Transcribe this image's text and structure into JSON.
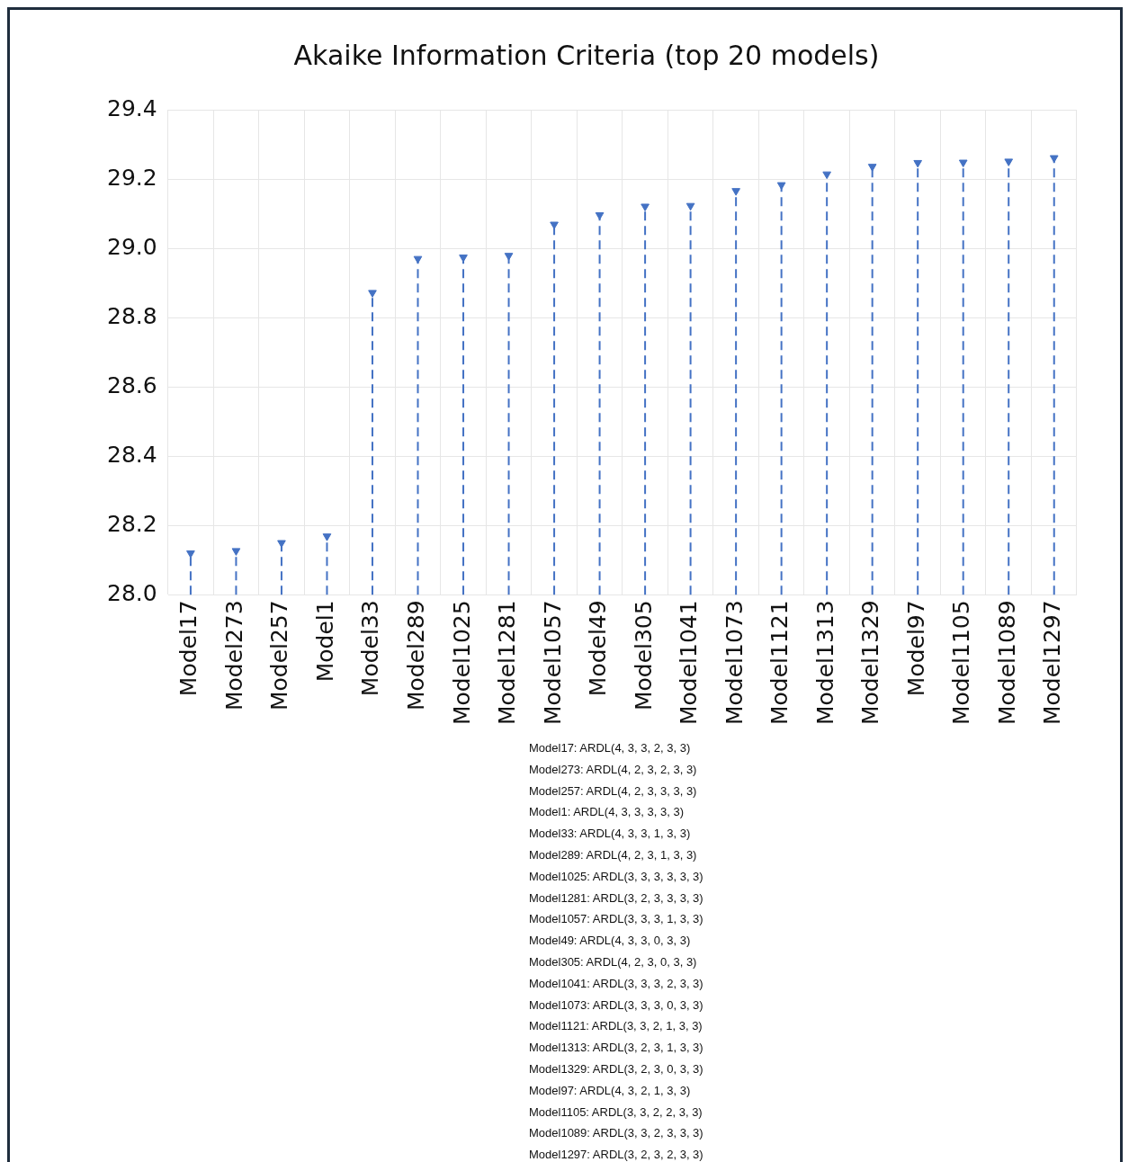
{
  "chart_data": {
    "type": "lollipop",
    "title": "Akaike Information Criteria (top 20 models)",
    "categories": [
      "Model17",
      "Model273",
      "Model257",
      "Model1",
      "Model33",
      "Model289",
      "Model1025",
      "Model1281",
      "Model1057",
      "Model49",
      "Model305",
      "Model1041",
      "Model1073",
      "Model1121",
      "Model1313",
      "Model1329",
      "Model97",
      "Model1105",
      "Model1089",
      "Model1297"
    ],
    "values": [
      28.12,
      28.127,
      28.15,
      28.169,
      28.872,
      28.97,
      28.974,
      28.979,
      29.069,
      29.096,
      29.121,
      29.123,
      29.166,
      29.183,
      29.214,
      29.236,
      29.247,
      29.248,
      29.251,
      29.261
    ],
    "color": "#4472c4",
    "ylim": [
      28,
      29.4
    ],
    "yticks": [
      {
        "value": 28,
        "label": "28.0"
      },
      28.2,
      28.4,
      28.6,
      28.8,
      {
        "value": 29,
        "label": "29.0"
      },
      29.2,
      29.4
    ],
    "grid": true,
    "marker": "triangle",
    "line_style": "dashed",
    "annotations": [
      "Model17: ARDL(4, 3, 3, 2, 3, 3)",
      "Model273: ARDL(4, 2, 3, 2, 3, 3)",
      "Model257: ARDL(4, 2, 3, 3, 3, 3)",
      "Model1: ARDL(4, 3, 3, 3, 3, 3)",
      "Model33: ARDL(4, 3, 3, 1, 3, 3)",
      "Model289: ARDL(4, 2, 3, 1, 3, 3)",
      "Model1025: ARDL(3, 3, 3, 3, 3, 3)",
      "Model1281: ARDL(3, 2, 3, 3, 3, 3)",
      "Model1057: ARDL(3, 3, 3, 1, 3, 3)",
      "Model49: ARDL(4, 3, 3, 0, 3, 3)",
      "Model305: ARDL(4, 2, 3, 0, 3, 3)",
      "Model1041: ARDL(3, 3, 3, 2, 3, 3)",
      "Model1073: ARDL(3, 3, 3, 0, 3, 3)",
      "Model1121: ARDL(3, 3, 2, 1, 3, 3)",
      "Model1313: ARDL(3, 2, 3, 1, 3, 3)",
      "Model1329: ARDL(3, 2, 3, 0, 3, 3)",
      "Model97: ARDL(4, 3, 2, 1, 3, 3)",
      "Model1105: ARDL(3, 3, 2, 2, 3, 3)",
      "Model1089: ARDL(3, 3, 2, 3, 3, 3)",
      "Model1297: ARDL(3, 2, 3, 2, 3, 3)"
    ]
  }
}
